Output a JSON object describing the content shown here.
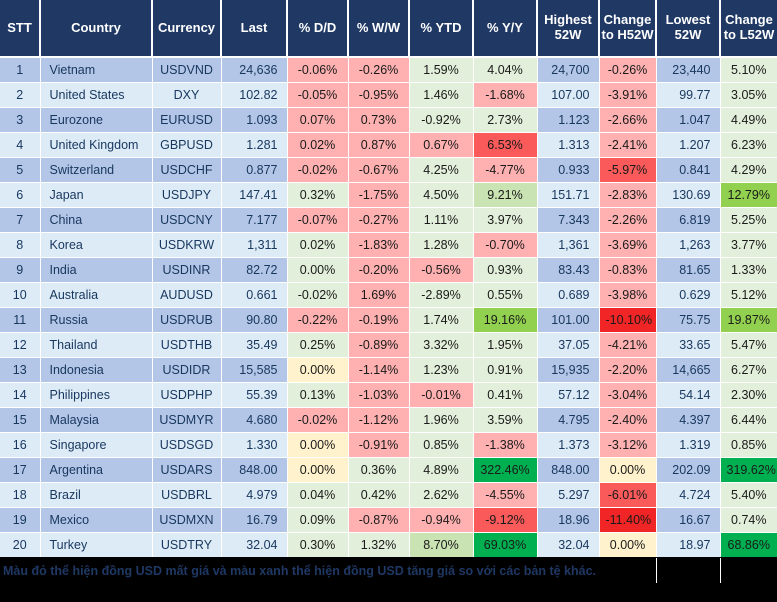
{
  "colors": {
    "header_bg": "#1F3864",
    "header_text": "#FFFFFF",
    "row_odd_bg": "#B4C6E7",
    "row_even_bg": "#DDEBF7",
    "red_light": "#FFB1B1",
    "red_medium": "#FA5A5A",
    "red_bright": "#F12525",
    "green_light": "#E2EFDA",
    "green_medium_light": "#C9E3B2",
    "green_medium": "#92D050",
    "green_dark": "#00B050",
    "yellow_light": "#FFF2CC",
    "footer_bg": "#000000",
    "footer_text": "#1F3864"
  },
  "table": {
    "columns": [
      {
        "label": "STT"
      },
      {
        "label": "Country"
      },
      {
        "label": "Currency"
      },
      {
        "label": "Last"
      },
      {
        "label": "% D/D"
      },
      {
        "label": "% W/W"
      },
      {
        "label": "% YTD"
      },
      {
        "label": "% Y/Y"
      },
      {
        "label": "Highest 52W"
      },
      {
        "label": "Change to H52W"
      },
      {
        "label": "Lowest 52W"
      },
      {
        "label": "Change to L52W"
      }
    ],
    "rows": [
      {
        "stt": 1,
        "country": "Vietnam",
        "currency": "USDVND",
        "last": "24,636",
        "dd": "-0.06%",
        "dd_c": "lr",
        "ww": "-0.26%",
        "ww_c": "lr",
        "ytd": "1.59%",
        "ytd_c": "lg",
        "yy": "4.04%",
        "yy_c": "lg",
        "h52w": "24,700",
        "ch52w": "-0.26%",
        "ch52w_c": "lr",
        "l52w": "23,440",
        "cl52w": "5.10%",
        "cl52w_c": "lg"
      },
      {
        "stt": 2,
        "country": "United States",
        "currency": "DXY",
        "last": "102.82",
        "dd": "-0.05%",
        "dd_c": "lr",
        "ww": "-0.95%",
        "ww_c": "lr",
        "ytd": "1.46%",
        "ytd_c": "lg",
        "yy": "-1.68%",
        "yy_c": "lr",
        "h52w": "107.00",
        "ch52w": "-3.91%",
        "ch52w_c": "lr",
        "l52w": "99.77",
        "cl52w": "3.05%",
        "cl52w_c": "lg"
      },
      {
        "stt": 3,
        "country": "Eurozone",
        "currency": "EURUSD",
        "last": "1.093",
        "dd": "0.07%",
        "dd_c": "lr",
        "ww": "0.73%",
        "ww_c": "lr",
        "ytd": "-0.92%",
        "ytd_c": "lg",
        "yy": "2.73%",
        "yy_c": "lg",
        "h52w": "1.123",
        "ch52w": "-2.66%",
        "ch52w_c": "lr",
        "l52w": "1.047",
        "cl52w": "4.49%",
        "cl52w_c": "lg"
      },
      {
        "stt": 4,
        "country": "United Kingdom",
        "currency": "GBPUSD",
        "last": "1.281",
        "dd": "0.02%",
        "dd_c": "lr",
        "ww": "0.87%",
        "ww_c": "lr",
        "ytd": "0.67%",
        "ytd_c": "lr",
        "yy": "6.53%",
        "yy_c": "mr",
        "h52w": "1.313",
        "ch52w": "-2.41%",
        "ch52w_c": "lr",
        "l52w": "1.207",
        "cl52w": "6.23%",
        "cl52w_c": "lg"
      },
      {
        "stt": 5,
        "country": "Switzerland",
        "currency": "USDCHF",
        "last": "0.877",
        "dd": "-0.02%",
        "dd_c": "lr",
        "ww": "-0.67%",
        "ww_c": "lr",
        "ytd": "4.25%",
        "ytd_c": "lg",
        "yy": "-4.77%",
        "yy_c": "lr",
        "h52w": "0.933",
        "ch52w": "-5.97%",
        "ch52w_c": "mr",
        "l52w": "0.841",
        "cl52w": "4.29%",
        "cl52w_c": "lg"
      },
      {
        "stt": 6,
        "country": "Japan",
        "currency": "USDJPY",
        "last": "147.41",
        "dd": "0.32%",
        "dd_c": "lg",
        "ww": "-1.75%",
        "ww_c": "lr",
        "ytd": "4.50%",
        "ytd_c": "lg",
        "yy": "9.21%",
        "yy_c": "mlg",
        "h52w": "151.71",
        "ch52w": "-2.83%",
        "ch52w_c": "lr",
        "l52w": "130.69",
        "cl52w": "12.79%",
        "cl52w_c": "mg"
      },
      {
        "stt": 7,
        "country": "China",
        "currency": "USDCNY",
        "last": "7.177",
        "dd": "-0.07%",
        "dd_c": "lr",
        "ww": "-0.27%",
        "ww_c": "lr",
        "ytd": "1.11%",
        "ytd_c": "lg",
        "yy": "3.97%",
        "yy_c": "lg",
        "h52w": "7.343",
        "ch52w": "-2.26%",
        "ch52w_c": "lr",
        "l52w": "6.819",
        "cl52w": "5.25%",
        "cl52w_c": "lg"
      },
      {
        "stt": 8,
        "country": "Korea",
        "currency": "USDKRW",
        "last": "1,311",
        "dd": "0.02%",
        "dd_c": "lg",
        "ww": "-1.83%",
        "ww_c": "lr",
        "ytd": "1.28%",
        "ytd_c": "lg",
        "yy": "-0.70%",
        "yy_c": "lr",
        "h52w": "1,361",
        "ch52w": "-3.69%",
        "ch52w_c": "lr",
        "l52w": "1,263",
        "cl52w": "3.77%",
        "cl52w_c": "lg"
      },
      {
        "stt": 9,
        "country": "India",
        "currency": "USDINR",
        "last": "82.72",
        "dd": "0.00%",
        "dd_c": "lg",
        "ww": "-0.20%",
        "ww_c": "lr",
        "ytd": "-0.56%",
        "ytd_c": "lr",
        "yy": "0.93%",
        "yy_c": "lg",
        "h52w": "83.43",
        "ch52w": "-0.83%",
        "ch52w_c": "lr",
        "l52w": "81.65",
        "cl52w": "1.33%",
        "cl52w_c": "lg"
      },
      {
        "stt": 10,
        "country": "Australia",
        "currency": "AUDUSD",
        "last": "0.661",
        "dd": "-0.02%",
        "dd_c": "lg",
        "ww": "1.69%",
        "ww_c": "lr",
        "ytd": "-2.89%",
        "ytd_c": "lg",
        "yy": "0.55%",
        "yy_c": "lg",
        "h52w": "0.689",
        "ch52w": "-3.98%",
        "ch52w_c": "lr",
        "l52w": "0.629",
        "cl52w": "5.12%",
        "cl52w_c": "lg"
      },
      {
        "stt": 11,
        "country": "Russia",
        "currency": "USDRUB",
        "last": "90.80",
        "dd": "-0.22%",
        "dd_c": "lr",
        "ww": "-0.19%",
        "ww_c": "lr",
        "ytd": "1.74%",
        "ytd_c": "lg",
        "yy": "19.16%",
        "yy_c": "mg",
        "h52w": "101.00",
        "ch52w": "-10.10%",
        "ch52w_c": "br",
        "l52w": "75.75",
        "cl52w": "19.87%",
        "cl52w_c": "mg"
      },
      {
        "stt": 12,
        "country": "Thailand",
        "currency": "USDTHB",
        "last": "35.49",
        "dd": "0.25%",
        "dd_c": "lg",
        "ww": "-0.89%",
        "ww_c": "lr",
        "ytd": "3.32%",
        "ytd_c": "lg",
        "yy": "1.95%",
        "yy_c": "lg",
        "h52w": "37.05",
        "ch52w": "-4.21%",
        "ch52w_c": "lr",
        "l52w": "33.65",
        "cl52w": "5.47%",
        "cl52w_c": "lg"
      },
      {
        "stt": 13,
        "country": "Indonesia",
        "currency": "USDIDR",
        "last": "15,585",
        "dd": "0.00%",
        "dd_c": "yl",
        "ww": "-1.14%",
        "ww_c": "lr",
        "ytd": "1.23%",
        "ytd_c": "lg",
        "yy": "0.91%",
        "yy_c": "lg",
        "h52w": "15,935",
        "ch52w": "-2.20%",
        "ch52w_c": "lr",
        "l52w": "14,665",
        "cl52w": "6.27%",
        "cl52w_c": "lg"
      },
      {
        "stt": 14,
        "country": "Philippines",
        "currency": "USDPHP",
        "last": "55.39",
        "dd": "0.13%",
        "dd_c": "lg",
        "ww": "-1.03%",
        "ww_c": "lr",
        "ytd": "-0.01%",
        "ytd_c": "lr",
        "yy": "0.41%",
        "yy_c": "lg",
        "h52w": "57.12",
        "ch52w": "-3.04%",
        "ch52w_c": "lr",
        "l52w": "54.14",
        "cl52w": "2.30%",
        "cl52w_c": "lg"
      },
      {
        "stt": 15,
        "country": "Malaysia",
        "currency": "USDMYR",
        "last": "4.680",
        "dd": "-0.02%",
        "dd_c": "lr",
        "ww": "-1.12%",
        "ww_c": "lr",
        "ytd": "1.96%",
        "ytd_c": "lg",
        "yy": "3.59%",
        "yy_c": "lg",
        "h52w": "4.795",
        "ch52w": "-2.40%",
        "ch52w_c": "lr",
        "l52w": "4.397",
        "cl52w": "6.44%",
        "cl52w_c": "lg"
      },
      {
        "stt": 16,
        "country": "Singapore",
        "currency": "USDSGD",
        "last": "1.330",
        "dd": "0.00%",
        "dd_c": "yl",
        "ww": "-0.91%",
        "ww_c": "lr",
        "ytd": "0.85%",
        "ytd_c": "lg",
        "yy": "-1.38%",
        "yy_c": "lr",
        "h52w": "1.373",
        "ch52w": "-3.12%",
        "ch52w_c": "lr",
        "l52w": "1.319",
        "cl52w": "0.85%",
        "cl52w_c": "lg"
      },
      {
        "stt": 17,
        "country": "Argentina",
        "currency": "USDARS",
        "last": "848.00",
        "dd": "0.00%",
        "dd_c": "yl",
        "ww": "0.36%",
        "ww_c": "lg",
        "ytd": "4.89%",
        "ytd_c": "lg",
        "yy": "322.46%",
        "yy_c": "dg",
        "h52w": "848.00",
        "ch52w": "0.00%",
        "ch52w_c": "yl",
        "l52w": "202.09",
        "cl52w": "319.62%",
        "cl52w_c": "dg"
      },
      {
        "stt": 18,
        "country": "Brazil",
        "currency": "USDBRL",
        "last": "4.979",
        "dd": "0.04%",
        "dd_c": "lg",
        "ww": "0.42%",
        "ww_c": "lg",
        "ytd": "2.62%",
        "ytd_c": "lg",
        "yy": "-4.55%",
        "yy_c": "lr",
        "h52w": "5.297",
        "ch52w": "-6.01%",
        "ch52w_c": "mr",
        "l52w": "4.724",
        "cl52w": "5.40%",
        "cl52w_c": "lg"
      },
      {
        "stt": 19,
        "country": "Mexico",
        "currency": "USDMXN",
        "last": "16.79",
        "dd": "0.09%",
        "dd_c": "lg",
        "ww": "-0.87%",
        "ww_c": "lr",
        "ytd": "-0.94%",
        "ytd_c": "lr",
        "yy": "-9.12%",
        "yy_c": "mr",
        "h52w": "18.96",
        "ch52w": "-11.40%",
        "ch52w_c": "br",
        "l52w": "16.67",
        "cl52w": "0.74%",
        "cl52w_c": "lg"
      },
      {
        "stt": 20,
        "country": "Turkey",
        "currency": "USDTRY",
        "last": "32.04",
        "dd": "0.30%",
        "dd_c": "lg",
        "ww": "1.32%",
        "ww_c": "lg",
        "ytd": "8.70%",
        "ytd_c": "mlg",
        "yy": "69.03%",
        "yy_c": "dg",
        "h52w": "32.04",
        "ch52w": "0.00%",
        "ch52w_c": "yl",
        "l52w": "18.97",
        "cl52w": "68.86%",
        "cl52w_c": "dg"
      }
    ]
  },
  "footer": {
    "note": "Màu đỏ thể hiện đồng USD mất giá và màu xanh thể hiện đồng USD tăng giá so với các bản tệ khác."
  }
}
